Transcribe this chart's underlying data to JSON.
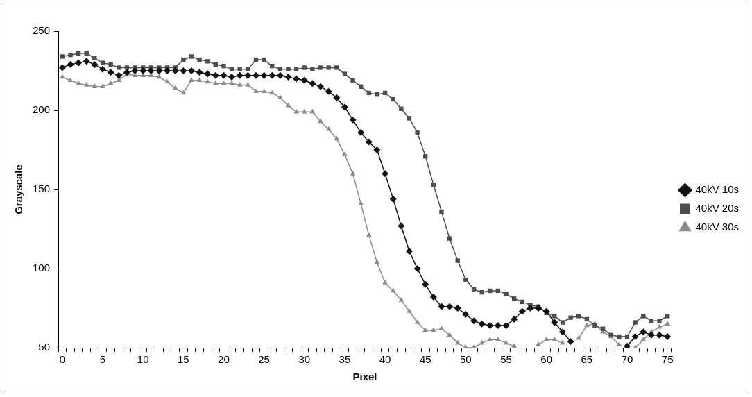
{
  "chart_data": {
    "type": "line",
    "xlabel": "Pixel",
    "ylabel": "Grayscale",
    "categories": [
      "0",
      null,
      null,
      null,
      null,
      "5",
      null,
      null,
      null,
      null,
      "10",
      null,
      null,
      null,
      null,
      "15",
      null,
      null,
      null,
      null,
      "20",
      null,
      null,
      null,
      null,
      "25",
      null,
      null,
      null,
      null,
      "30",
      null,
      null,
      null,
      null,
      "35",
      null,
      null,
      null,
      null,
      "40",
      null,
      null,
      null,
      null,
      "45",
      null,
      null,
      null,
      null,
      "50",
      null,
      null,
      null,
      null,
      "55",
      null,
      null,
      null,
      null,
      "60",
      null,
      null,
      null,
      null,
      "65",
      null,
      null,
      null,
      null,
      "70",
      null,
      null,
      null,
      null,
      "75"
    ],
    "series": [
      {
        "name": "40kV 10s",
        "color": "#111111",
        "marker": "diamond",
        "values": [
          227,
          229,
          230,
          231,
          229,
          226,
          224,
          222,
          224,
          225,
          225,
          225,
          225,
          225,
          225,
          225,
          225,
          224,
          223,
          222,
          222,
          221,
          222,
          222,
          222,
          222,
          222,
          222,
          221,
          220,
          219,
          217,
          215,
          212,
          208,
          202,
          194,
          186,
          180,
          175,
          160,
          144,
          127,
          111,
          100,
          90,
          82,
          76,
          76,
          75,
          71,
          67,
          65,
          64,
          64,
          64,
          68,
          73,
          75,
          75,
          73,
          66,
          60,
          54,
          null,
          null,
          null,
          null,
          null,
          null,
          51,
          57,
          60,
          58,
          58,
          57
        ]
      },
      {
        "name": "40kV 20s",
        "color": "#4d4d4d",
        "marker": "square",
        "values": [
          234,
          235,
          236,
          236,
          233,
          230,
          229,
          227,
          227,
          227,
          227,
          227,
          227,
          227,
          227,
          232,
          234,
          232,
          231,
          229,
          228,
          226,
          226,
          226,
          232,
          232,
          228,
          226,
          226,
          226,
          227,
          226,
          227,
          227,
          227,
          223,
          219,
          215,
          211,
          210,
          211,
          207,
          201,
          195,
          186,
          171,
          153,
          136,
          119,
          105,
          93,
          87,
          85,
          86,
          86,
          84,
          81,
          79,
          77,
          76,
          72,
          70,
          66,
          69,
          70,
          68,
          64,
          62,
          58,
          57,
          57,
          66,
          70,
          67,
          67,
          70
        ]
      },
      {
        "name": "40kV 30s",
        "color": "#8c8c8c",
        "marker": "triangle",
        "values": [
          221,
          219,
          217,
          216,
          215,
          215,
          217,
          219,
          223,
          222,
          222,
          222,
          221,
          218,
          214,
          211,
          219,
          219,
          218,
          217,
          217,
          217,
          216,
          216,
          212,
          212,
          211,
          208,
          203,
          199,
          199,
          199,
          193,
          188,
          182,
          172,
          160,
          141,
          121,
          104,
          91,
          86,
          80,
          73,
          66,
          61,
          61,
          62,
          58,
          53,
          50,
          50,
          53,
          55,
          55,
          53,
          51,
          null,
          null,
          52,
          55,
          55,
          53,
          null,
          56,
          64,
          65,
          60,
          57,
          52,
          null,
          50,
          55,
          60,
          63,
          65
        ]
      }
    ],
    "ylim": [
      50,
      250
    ],
    "yticks": [
      50,
      100,
      150,
      200,
      250
    ],
    "grid": false,
    "legend": "right",
    "line_style": "solid"
  }
}
